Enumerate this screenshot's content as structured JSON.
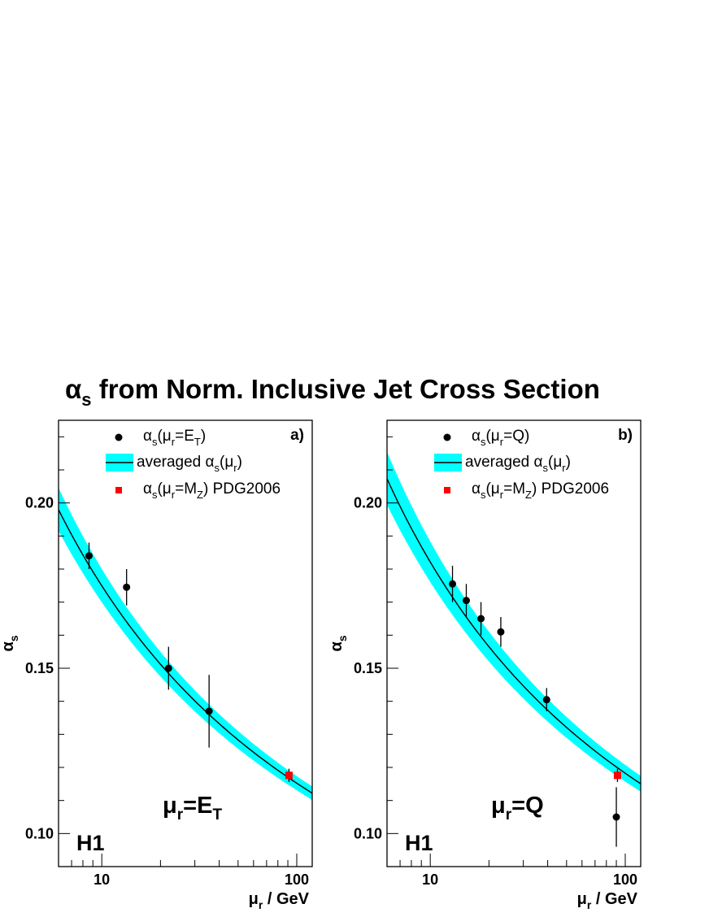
{
  "figure_title": "from Norm. Inclusive Jet Cross Section",
  "figure_title_symbol": "α",
  "figure_title_sub": "s",
  "chart_data": [
    {
      "type": "scatter",
      "panel": "a)",
      "xlabel": "μ",
      "xlabel_sub": "r",
      "xlabel_unit": " / GeV",
      "ylabel": "α",
      "ylabel_sub": "s",
      "xscale": "log",
      "xlim": [
        6,
        120
      ],
      "ylim": [
        0.09,
        0.225
      ],
      "x_ticks": [
        10,
        100
      ],
      "y_ticks": [
        0.1,
        0.15,
        0.2
      ],
      "y_tick_labels": [
        "0.10",
        "0.15",
        "0.20"
      ],
      "experiment": "H1",
      "scale_label": "μ",
      "scale_label_sub": "r",
      "scale_label_value": "=E",
      "scale_label_value_sub": "T",
      "legend": {
        "placement": "top-right",
        "points_label": {
          "pre": "α",
          "s": "s",
          "mid1": "(μ",
          "r": "r",
          "mid2": "=E",
          "tail_sub": "T",
          "post": ")"
        },
        "band_label": {
          "pre": "averaged α",
          "s": "s",
          "mid1": "(μ",
          "r": "r",
          "post": ")"
        },
        "pdg_label": {
          "pre": "α",
          "s": "s",
          "mid1": "(μ",
          "r": "r",
          "mid2": "=M",
          "tail_sub": "Z",
          "post": ") PDG2006"
        }
      },
      "series": [
        {
          "name": "αs(μr=ET)",
          "x": [
            8.6,
            13.4,
            22.0,
            35.5
          ],
          "y": [
            0.184,
            0.1745,
            0.15,
            0.137
          ],
          "err": [
            0.004,
            0.0055,
            0.0065,
            0.011
          ]
        },
        {
          "name": "αs(μr=MZ) PDG2006",
          "x": [
            91.2
          ],
          "y": [
            0.1176
          ],
          "err": [
            0.002
          ]
        }
      ],
      "band": {
        "name": "averaged αs(μr)",
        "alpha_mz": 0.1168,
        "half_width_mz": 0.0022,
        "color": "#00ffff"
      }
    },
    {
      "type": "scatter",
      "panel": "b)",
      "xlabel": "μ",
      "xlabel_sub": "r",
      "xlabel_unit": " / GeV",
      "ylabel": "α",
      "ylabel_sub": "s",
      "xscale": "log",
      "xlim": [
        6,
        120
      ],
      "ylim": [
        0.09,
        0.225
      ],
      "x_ticks": [
        10,
        100
      ],
      "y_ticks": [
        0.1,
        0.15,
        0.2
      ],
      "y_tick_labels": [
        "0.10",
        "0.15",
        "0.20"
      ],
      "experiment": "H1",
      "scale_label": "μ",
      "scale_label_sub": "r",
      "scale_label_value": "=Q",
      "scale_label_value_sub": "",
      "legend": {
        "placement": "top-right",
        "points_label": {
          "pre": "α",
          "s": "s",
          "mid1": "(μ",
          "r": "r",
          "mid2": "=Q",
          "tail_sub": "",
          "post": ")"
        },
        "band_label": {
          "pre": "averaged α",
          "s": "s",
          "mid1": "(μ",
          "r": "r",
          "post": ")"
        },
        "pdg_label": {
          "pre": "α",
          "s": "s",
          "mid1": "(μ",
          "r": "r",
          "mid2": "=M",
          "tail_sub": "Z",
          "post": ") PDG2006"
        }
      },
      "series": [
        {
          "name": "αs(μr=Q)",
          "x": [
            13.0,
            15.3,
            18.2,
            23.0,
            39.5,
            90.0
          ],
          "y": [
            0.1755,
            0.1705,
            0.165,
            0.161,
            0.1405,
            0.105
          ],
          "err": [
            0.0055,
            0.005,
            0.005,
            0.0045,
            0.0035,
            0.009
          ]
        },
        {
          "name": "αs(μr=MZ) PDG2006",
          "x": [
            91.2
          ],
          "y": [
            0.1176
          ],
          "err": [
            0.002
          ]
        }
      ],
      "band": {
        "name": "averaged αs(μr)",
        "alpha_mz": 0.1199,
        "half_width_mz": 0.0026,
        "color": "#00ffff"
      }
    }
  ]
}
